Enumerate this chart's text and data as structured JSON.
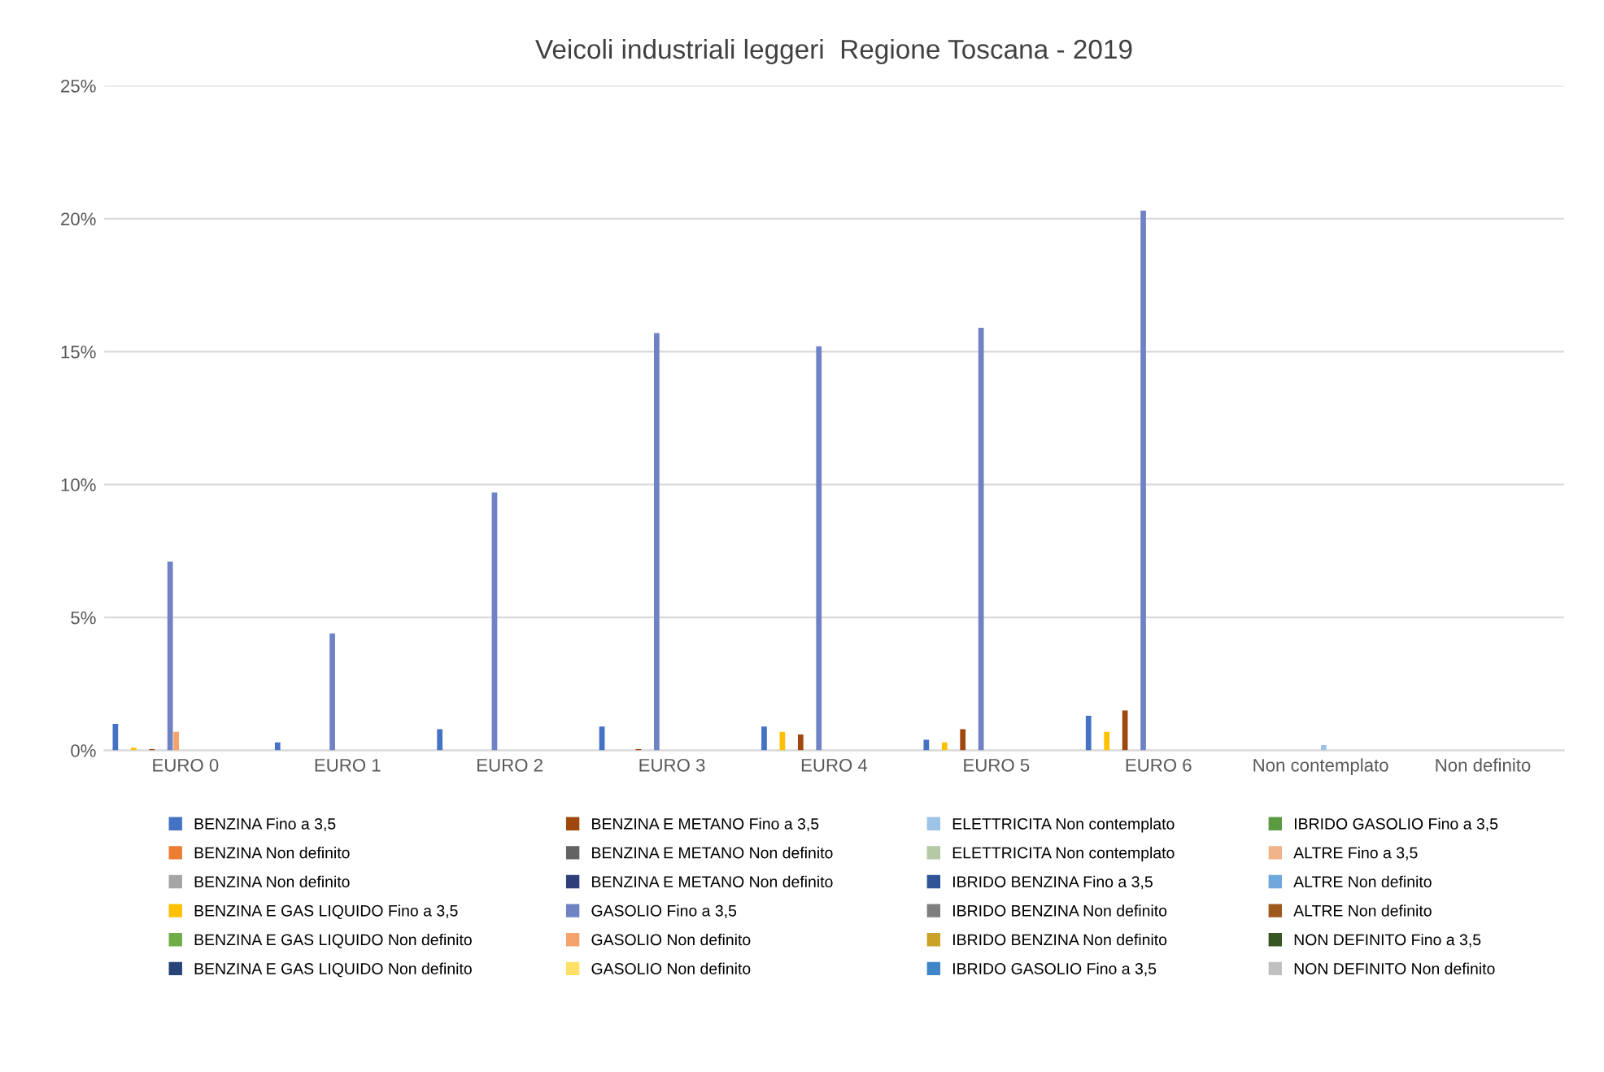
{
  "chart_data": {
    "type": "bar",
    "title": "Veicoli industriali leggeri  Regione Toscana - 2019",
    "categories": [
      "EURO 0",
      "EURO 1",
      "EURO 2",
      "EURO 3",
      "EURO 4",
      "EURO 5",
      "EURO 6",
      "Non contemplato",
      "Non definito"
    ],
    "ylim": [
      0,
      25
    ],
    "yticks": [
      {
        "value": 0,
        "label": "0%"
      },
      {
        "value": 5,
        "label": "5%"
      },
      {
        "value": 10,
        "label": "10%"
      },
      {
        "value": 15,
        "label": "15%"
      },
      {
        "value": 20,
        "label": "20%"
      },
      {
        "value": 25,
        "label": "25%"
      }
    ],
    "grid": "y",
    "legend": "bottom",
    "series": [
      {
        "name": "BENZINA Fino a 3,5",
        "color": "#4472c4",
        "values": [
          1.0,
          0.3,
          0.8,
          0.9,
          0.9,
          0.4,
          1.3,
          0,
          0
        ]
      },
      {
        "name": "BENZINA Non definito",
        "color": "#ed7d31",
        "values": [
          0,
          0,
          0,
          0,
          0,
          0,
          0,
          0,
          0
        ]
      },
      {
        "name": "BENZINA Non definito",
        "color": "#a5a5a5",
        "values": [
          0,
          0,
          0,
          0,
          0,
          0,
          0,
          0,
          0
        ]
      },
      {
        "name": "BENZINA E GAS LIQUIDO Fino a 3,5",
        "color": "#ffc000",
        "values": [
          0.1,
          0,
          0,
          0,
          0.7,
          0.3,
          0.7,
          0,
          0
        ]
      },
      {
        "name": "BENZINA E GAS LIQUIDO Non definito",
        "color": "#70ad47",
        "values": [
          0,
          0,
          0,
          0,
          0,
          0,
          0,
          0,
          0
        ]
      },
      {
        "name": "BENZINA E GAS LIQUIDO Non definito",
        "color": "#264478",
        "values": [
          0,
          0,
          0,
          0,
          0,
          0,
          0,
          0,
          0
        ]
      },
      {
        "name": "BENZINA E METANO Fino a 3,5",
        "color": "#9e480e",
        "values": [
          0.05,
          0,
          0,
          0.05,
          0.6,
          0.8,
          1.5,
          0,
          0
        ]
      },
      {
        "name": "BENZINA E METANO Non definito",
        "color": "#636363",
        "values": [
          0,
          0,
          0,
          0,
          0,
          0,
          0,
          0,
          0
        ]
      },
      {
        "name": "BENZINA E METANO Non definito",
        "color": "#2f3f7a",
        "values": [
          0,
          0,
          0,
          0,
          0,
          0,
          0,
          0,
          0
        ]
      },
      {
        "name": "GASOLIO Fino a 3,5",
        "color": "#6f82c4",
        "values": [
          7.1,
          4.4,
          9.7,
          15.7,
          15.2,
          15.9,
          20.3,
          0,
          0
        ]
      },
      {
        "name": "GASOLIO Non definito",
        "color": "#f4a36c",
        "values": [
          0.7,
          0,
          0,
          0,
          0,
          0,
          0,
          0,
          0
        ]
      },
      {
        "name": "GASOLIO Non definito",
        "color": "#ffe066",
        "values": [
          0,
          0,
          0,
          0,
          0,
          0,
          0,
          0,
          0
        ]
      },
      {
        "name": "ELETTRICITA Non contemplato",
        "color": "#9dc3e6",
        "values": [
          0,
          0,
          0,
          0,
          0,
          0,
          0,
          0.2,
          0
        ]
      },
      {
        "name": "ELETTRICITA Non contemplato",
        "color": "#b5c9a5",
        "values": [
          0,
          0,
          0,
          0,
          0,
          0,
          0,
          0,
          0
        ]
      },
      {
        "name": "IBRIDO BENZINA Fino a 3,5",
        "color": "#2f5597",
        "values": [
          0,
          0,
          0,
          0,
          0,
          0,
          0,
          0,
          0
        ]
      },
      {
        "name": "IBRIDO BENZINA Non definito",
        "color": "#7f7f7f",
        "values": [
          0,
          0,
          0,
          0,
          0,
          0,
          0,
          0,
          0
        ]
      },
      {
        "name": "IBRIDO BENZINA Non definito",
        "color": "#c9a227",
        "values": [
          0,
          0,
          0,
          0,
          0,
          0,
          0,
          0,
          0
        ]
      },
      {
        "name": "IBRIDO GASOLIO Fino a 3,5",
        "color": "#3e86c8",
        "values": [
          0,
          0,
          0,
          0,
          0,
          0,
          0,
          0,
          0
        ]
      },
      {
        "name": "IBRIDO GASOLIO Fino a 3,5",
        "color": "#5b9a40",
        "values": [
          0,
          0,
          0,
          0,
          0,
          0,
          0,
          0,
          0
        ]
      },
      {
        "name": "ALTRE Fino a 3,5",
        "color": "#f1b48a",
        "values": [
          0,
          0,
          0,
          0,
          0,
          0,
          0,
          0,
          0
        ]
      },
      {
        "name": "ALTRE Non definito",
        "color": "#6fa8dc",
        "values": [
          0,
          0,
          0,
          0,
          0,
          0,
          0,
          0,
          0
        ]
      },
      {
        "name": "ALTRE Non definito",
        "color": "#9e5a1e",
        "values": [
          0,
          0,
          0,
          0,
          0,
          0,
          0,
          0,
          0
        ]
      },
      {
        "name": "NON DEFINITO Fino a 3,5",
        "color": "#375623",
        "values": [
          0,
          0,
          0,
          0,
          0,
          0,
          0,
          0,
          0
        ]
      },
      {
        "name": "NON DEFINITO Non definito",
        "color": "#c0c0c0",
        "values": [
          0,
          0,
          0,
          0,
          0,
          0,
          0,
          0,
          0
        ]
      }
    ]
  }
}
